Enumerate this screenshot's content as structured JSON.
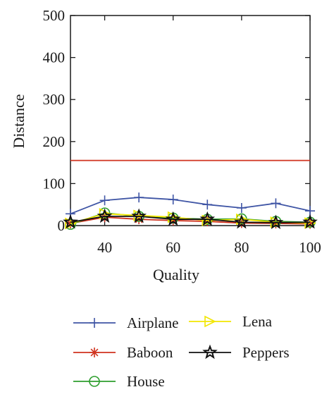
{
  "chart_data": {
    "type": "line",
    "title": "",
    "xlabel": "Quality",
    "ylabel": "Distance",
    "xlim": [
      30,
      100
    ],
    "ylim": [
      0,
      500
    ],
    "xticks": [
      40,
      60,
      80,
      100
    ],
    "yticks": [
      0,
      100,
      200,
      300,
      400,
      500
    ],
    "grid": false,
    "legend_position": "bottom",
    "x": [
      30,
      40,
      50,
      60,
      70,
      80,
      90,
      100
    ],
    "series": [
      {
        "name": "Airplane",
        "color": "#3f55a5",
        "marker": "plus",
        "values": [
          28,
          60,
          67,
          62,
          50,
          42,
          53,
          35
        ]
      },
      {
        "name": "Baboon",
        "color": "#d0331f",
        "marker": "asterisk",
        "constant": 155,
        "values": [
          5,
          20,
          15,
          12,
          10,
          6,
          5,
          4
        ]
      },
      {
        "name": "House",
        "color": "#2e9e2e",
        "marker": "circle",
        "values": [
          3,
          30,
          22,
          18,
          15,
          16,
          10,
          8
        ]
      },
      {
        "name": "Lena",
        "color": "#f2e600",
        "marker": "triangle-right",
        "values": [
          5,
          28,
          24,
          20,
          12,
          15,
          8,
          6
        ]
      },
      {
        "name": "Peppers",
        "color": "#111111",
        "marker": "star",
        "values": [
          8,
          22,
          22,
          15,
          15,
          8,
          7,
          8
        ]
      }
    ]
  }
}
